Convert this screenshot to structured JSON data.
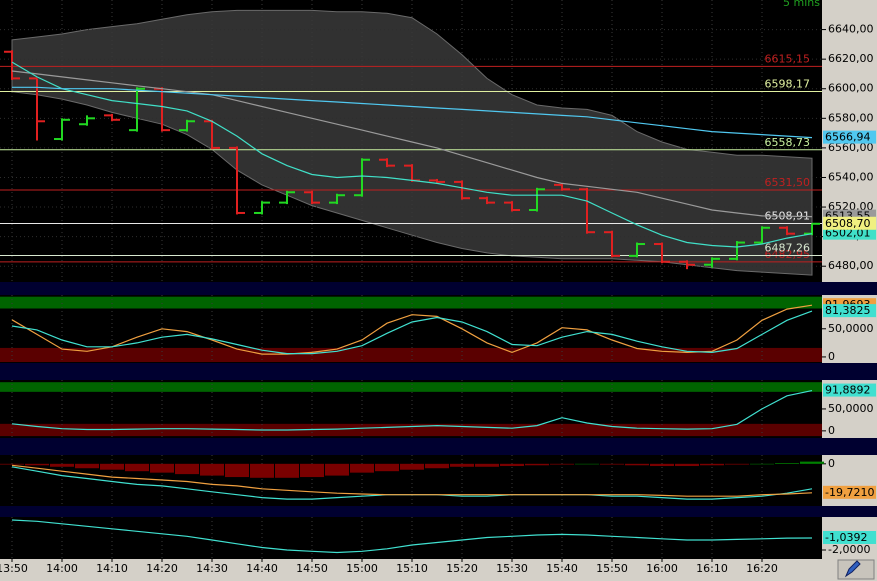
{
  "chart_data": [
    {
      "type": "ohlc",
      "subtitle": "5 mins",
      "categories": [
        "13:50",
        null,
        "14:00",
        null,
        "14:10",
        null,
        "14:20",
        null,
        "14:30",
        null,
        "14:40",
        null,
        "14:50",
        null,
        "15:00",
        null,
        "15:10",
        null,
        "15:20",
        null,
        "15:30",
        null,
        "15:40",
        null,
        "15:50",
        null,
        "16:00",
        null,
        "16:10",
        null,
        "16:20",
        null,
        null
      ],
      "open": [
        6625,
        6607,
        6566,
        6576,
        6582,
        6572,
        6600,
        6572,
        6578,
        6560,
        6516,
        6523,
        6530,
        6523,
        6528,
        6552,
        6548,
        6538,
        6537,
        6526,
        6523,
        6518,
        6535,
        6532,
        6503,
        6487,
        6495,
        6483,
        6481,
        6485,
        6496,
        6506,
        6502
      ],
      "high": [
        6626,
        6607,
        6580,
        6582,
        6583,
        6601,
        6601,
        6579,
        6579,
        6561,
        6524,
        6531,
        6531,
        6529,
        6553,
        6553,
        6549,
        6539,
        6538,
        6527,
        6524,
        6533,
        6536,
        6533,
        6504,
        6496,
        6496,
        6484,
        6486,
        6497,
        6507,
        6507,
        6509
      ],
      "low": [
        6606,
        6565,
        6565,
        6575,
        6578,
        6571,
        6571,
        6571,
        6559,
        6515,
        6515,
        6522,
        6522,
        6522,
        6527,
        6547,
        6537,
        6536,
        6525,
        6522,
        6517,
        6517,
        6531,
        6502,
        6486,
        6486,
        6482,
        6478,
        6479,
        6484,
        6495,
        6501,
        6501
      ],
      "close": [
        6607,
        6578,
        6579,
        6580,
        6579,
        6600,
        6572,
        6578,
        6560,
        6516,
        6523,
        6530,
        6523,
        6528,
        6552,
        6548,
        6538,
        6537,
        6526,
        6523,
        6518,
        6532,
        6532,
        6503,
        6487,
        6495,
        6483,
        6481,
        6485,
        6496,
        6506,
        6502,
        6508.7
      ],
      "close_label": "6508,70",
      "close_label_color": "#f0f080",
      "colors": {
        "up": "#22d822",
        "down": "#e02020"
      },
      "ylim": [
        6470,
        6660
      ],
      "yticks": [
        {
          "value": 6480,
          "label": "6480,00"
        },
        {
          "value": 6500,
          "label": "6500,00"
        },
        {
          "value": 6520,
          "label": "6520,00"
        },
        {
          "value": 6540,
          "label": "6540,00"
        },
        {
          "value": 6560,
          "label": "6560,00"
        },
        {
          "value": 6580,
          "label": "6580,00"
        },
        {
          "value": 6600,
          "label": "6600,00"
        },
        {
          "value": 6620,
          "label": "6620,00"
        },
        {
          "value": 6640,
          "label": "6640,00"
        }
      ],
      "grid": true,
      "band": {
        "color": "#3a3a3a",
        "upper": [
          6633,
          6635,
          6637,
          6640,
          6642,
          6644,
          6647,
          6650,
          6652,
          6653,
          6653,
          6653,
          6653,
          6652,
          6652,
          6651,
          6648,
          6637,
          6623,
          6607,
          6596,
          6589,
          6587,
          6586,
          6582,
          6571,
          6564,
          6559,
          6557,
          6555,
          6555,
          6554,
          6553
        ],
        "lower": [
          6598,
          6596,
          6593,
          6589,
          6584,
          6580,
          6576,
          6569,
          6559,
          6545,
          6535,
          6528,
          6521,
          6516,
          6511,
          6506,
          6501,
          6496,
          6492,
          6489,
          6487,
          6486,
          6485,
          6485,
          6485,
          6484,
          6483,
          6481,
          6479,
          6477,
          6476,
          6475,
          6474
        ]
      },
      "hlines": [
        {
          "value": 6615.15,
          "label": "6615,15",
          "color": "#c02020"
        },
        {
          "value": 6598.17,
          "label": "6598,17",
          "color": "#e0f0a0"
        },
        {
          "value": 6558.73,
          "label": "6558,73",
          "color": "#c8f0a0"
        },
        {
          "value": 6531.5,
          "label": "6531,50",
          "color": "#c02020"
        },
        {
          "value": 6508.91,
          "label": "6508,91",
          "color": "#e8e8e8"
        },
        {
          "value": 6482.95,
          "label": "6482,95",
          "color": "#c02020"
        },
        {
          "value": 6487.26,
          "label": "6487,26",
          "color": "#d8e8d0"
        }
      ],
      "series": [
        {
          "color": "#9a9a9a",
          "values": [
            6612,
            6610,
            6608,
            6606,
            6604,
            6602,
            6600,
            6598,
            6596,
            6592,
            6588,
            6584,
            6580,
            6576,
            6572,
            6568,
            6564,
            6560,
            6555,
            6550,
            6545,
            6540,
            6536,
            6534,
            6532,
            6530,
            6526,
            6522,
            6518,
            6516,
            6514,
            6513.8,
            6513.55
          ],
          "end_label": "6513,55"
        },
        {
          "color": "#40e0c8",
          "values": [
            6618,
            6608,
            6600,
            6596,
            6592,
            6590,
            6588,
            6585,
            6578,
            6568,
            6556,
            6548,
            6542,
            6540,
            6541,
            6540,
            6538,
            6536,
            6533,
            6530,
            6528,
            6528,
            6528,
            6524,
            6516,
            6508,
            6501,
            6496,
            6494,
            6493,
            6495,
            6499,
            6502.01
          ],
          "end_label": "6502,01"
        },
        {
          "color": "#50c8f0",
          "values": [
            6601,
            6601,
            6600,
            6600,
            6600,
            6599,
            6598,
            6597,
            6596,
            6595,
            6594,
            6593,
            6592,
            6591,
            6590,
            6589,
            6588,
            6587,
            6586,
            6585,
            6584,
            6583,
            6582,
            6581,
            6579,
            6577,
            6575,
            6573,
            6571,
            6570,
            6569,
            6568,
            6566.94
          ],
          "end_label": "6566,94"
        }
      ]
    },
    {
      "type": "line",
      "ylim": [
        -9,
        110
      ],
      "yticks": [
        0,
        {
          "value": 50,
          "label": "50,0000"
        }
      ],
      "zones": [
        {
          "from": 86,
          "to": 107,
          "color": "#006400"
        },
        {
          "from": -9,
          "to": 16,
          "color": "#5a0000"
        }
      ],
      "series": [
        {
          "color": "#f0a040",
          "values": [
            66,
            40,
            14,
            10,
            18,
            35,
            50,
            45,
            30,
            14,
            5,
            5,
            8,
            14,
            30,
            60,
            75,
            72,
            50,
            25,
            8,
            25,
            52,
            48,
            30,
            15,
            10,
            8,
            10,
            30,
            65,
            85,
            91.9693
          ],
          "end_label": "91,9693"
        },
        {
          "color": "#40e0d0",
          "values": [
            55,
            48,
            30,
            18,
            18,
            25,
            35,
            40,
            32,
            22,
            12,
            6,
            6,
            10,
            20,
            42,
            62,
            70,
            62,
            45,
            22,
            20,
            35,
            45,
            40,
            28,
            18,
            10,
            8,
            15,
            40,
            65,
            81.3825
          ],
          "end_label": "81,3825"
        }
      ]
    },
    {
      "type": "line",
      "ylim": [
        -14,
        116
      ],
      "yticks": [
        0,
        {
          "value": 50,
          "label": "50,0000"
        }
      ],
      "zones": [
        {
          "from": 89,
          "to": 111,
          "color": "#006400"
        },
        {
          "from": -12,
          "to": 16,
          "color": "#5a0000"
        }
      ],
      "series": [
        {
          "color": "#40e0d0",
          "values": [
            16,
            10,
            5,
            3,
            3,
            4,
            5,
            5,
            4,
            3,
            2,
            2,
            3,
            4,
            6,
            8,
            10,
            12,
            10,
            8,
            6,
            12,
            30,
            18,
            10,
            6,
            5,
            4,
            5,
            15,
            50,
            80,
            91.8892
          ],
          "end_label": "91,8892"
        }
      ]
    },
    {
      "type": "histogram",
      "ylim": [
        -28,
        6
      ],
      "yticks": [
        0
      ],
      "histogram": [
        -0.5,
        -1,
        -2,
        -3,
        -4,
        -5,
        -6,
        -7,
        -8,
        -9,
        -9.5,
        -9.5,
        -9,
        -8,
        -6,
        -5,
        -4,
        -3,
        -2,
        -2,
        -1.5,
        -1,
        -0.5,
        0,
        -0.5,
        -1,
        -1.5,
        -1.5,
        -1,
        -0.5,
        0,
        0.5,
        1.5
      ],
      "colors": {
        "up": "#008000",
        "down": "#7a0000"
      },
      "series": [
        {
          "color": "#40e0d0",
          "values": [
            -2,
            -5,
            -8,
            -10,
            -12,
            -14,
            -15,
            -17,
            -19,
            -21,
            -23,
            -24,
            -24,
            -23,
            -22,
            -21,
            -21,
            -21,
            -22,
            -22,
            -21,
            -21,
            -21,
            -21,
            -22,
            -22,
            -23,
            -24,
            -24,
            -23,
            -22,
            -20,
            -17
          ]
        },
        {
          "color": "#f0a040",
          "values": [
            -1,
            -3,
            -5,
            -7,
            -9,
            -10,
            -11,
            -12,
            -14,
            -15,
            -17,
            -18,
            -19,
            -20,
            -20.5,
            -21,
            -21,
            -21,
            -21,
            -21,
            -21,
            -21,
            -21,
            -21,
            -21,
            -21,
            -21.5,
            -22,
            -22,
            -22,
            -21,
            -20.5,
            -19.721
          ],
          "end_label": "-19,7210"
        }
      ]
    },
    {
      "type": "line",
      "ylim": [
        -2.64,
        0.64
      ],
      "yticks": [
        {
          "value": -2,
          "label": "-2,0000"
        }
      ],
      "series": [
        {
          "color": "#40e0d0",
          "values": [
            0.4,
            0.3,
            0.1,
            -0.1,
            -0.3,
            -0.5,
            -0.7,
            -0.9,
            -1.2,
            -1.5,
            -1.8,
            -2,
            -2.1,
            -2.2,
            -2.1,
            -1.9,
            -1.6,
            -1.4,
            -1.2,
            -1,
            -0.9,
            -0.8,
            -0.75,
            -0.8,
            -0.9,
            -1,
            -1.1,
            -1.2,
            -1.2,
            -1.15,
            -1.1,
            -1.05,
            -1.0392
          ],
          "end_label": "-1,0392"
        }
      ]
    }
  ]
}
